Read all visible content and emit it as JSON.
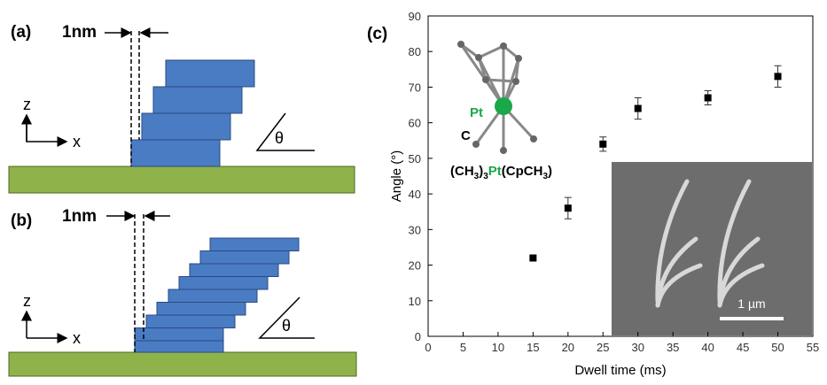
{
  "panels": {
    "a": {
      "label": "(a)",
      "gap": "1nm",
      "z": "z",
      "x": "x",
      "angle": "θ"
    },
    "b": {
      "label": "(b)",
      "gap": "1nm",
      "z": "z",
      "x": "x",
      "angle": "θ"
    }
  },
  "chart_data": {
    "type": "scatter",
    "panel_label": "(c)",
    "x_label": "Dwell time (ms)",
    "y_label": "Angle (°)",
    "x": [
      15,
      20,
      25,
      30,
      40,
      50
    ],
    "values": [
      22,
      36,
      54,
      64,
      67,
      73
    ],
    "errors": [
      null,
      3,
      2,
      3,
      2,
      3
    ],
    "color": "#000000",
    "xlim": [
      0,
      55
    ],
    "xticks": [
      0,
      5,
      10,
      15,
      20,
      25,
      30,
      35,
      40,
      45,
      50,
      55
    ],
    "ylim": [
      0,
      90
    ],
    "yticks": [
      0,
      10,
      20,
      30,
      40,
      50,
      60,
      70,
      80,
      90
    ],
    "inset": {
      "pt": "Pt",
      "c": "C",
      "formula": [
        "(CH",
        "3",
        ")",
        "3",
        "Pt",
        "(CpCH",
        "3",
        ")"
      ],
      "scale_bar": "1 µm"
    }
  }
}
